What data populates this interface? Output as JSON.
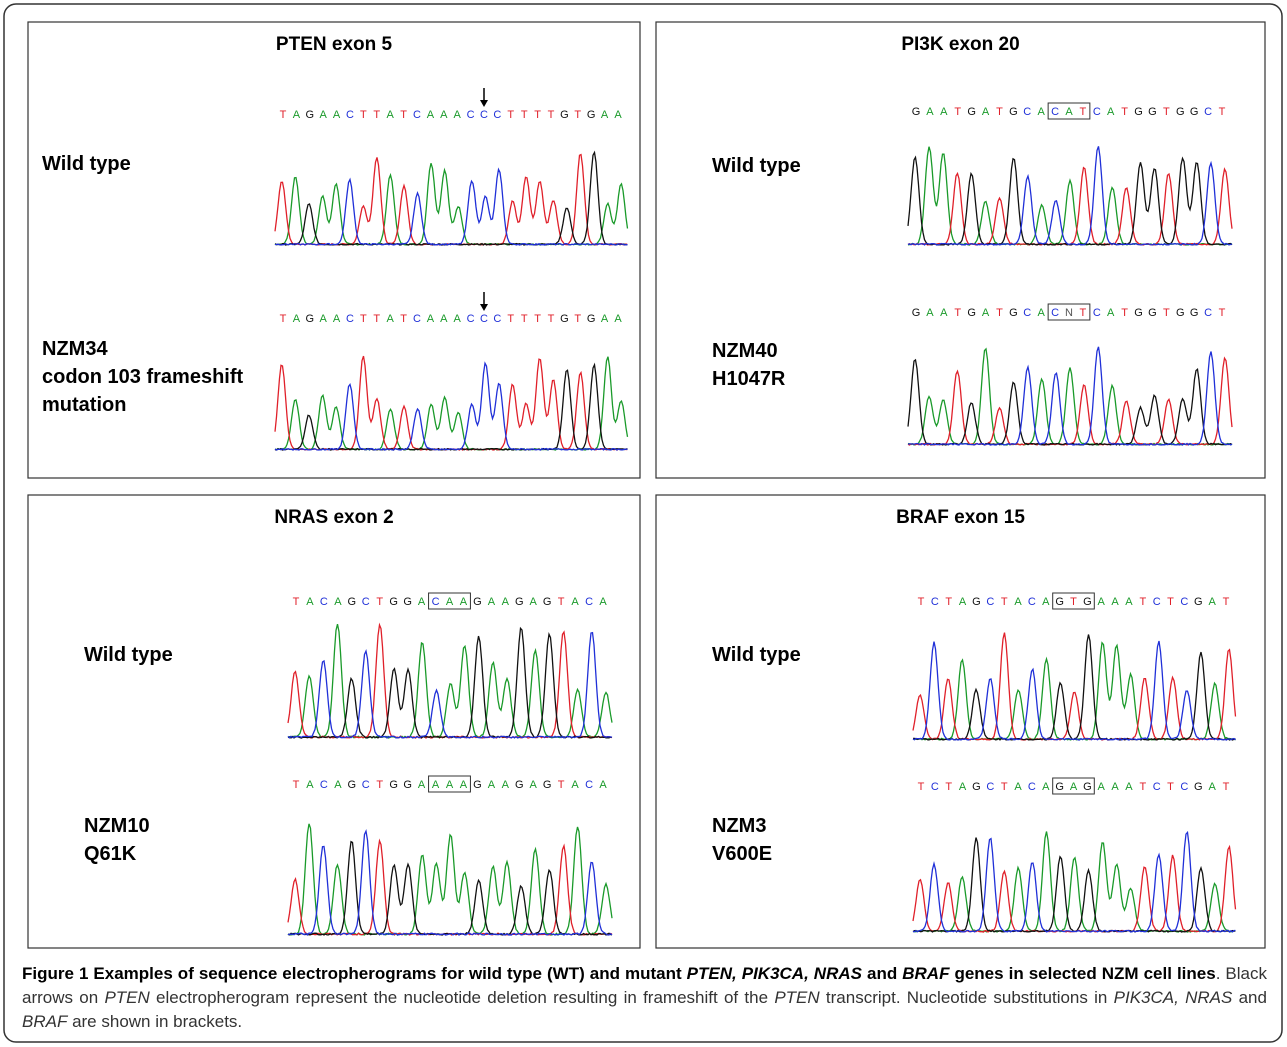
{
  "panels": [
    {
      "title": "PTEN exon 5",
      "rows": [
        {
          "label": [
            "Wild type"
          ],
          "sequence": "TAGAACTTATCAAACCCTTTTGTGAA"
        },
        {
          "label": [
            "NZM34",
            "codon 103 frameshift",
            "mutation"
          ],
          "sequence": "TAGAACTTATCAAACCCTTTTGTGAA"
        }
      ]
    },
    {
      "title": "PI3K exon 20",
      "rows": [
        {
          "label": [
            "Wild type"
          ],
          "sequence": "GAATGATGCACATCATGGTGGCT"
        },
        {
          "label": [
            "NZM40",
            "H1047R"
          ],
          "sequence": "GAATGATGCACNTCATGGTGGCT"
        }
      ]
    },
    {
      "title": "NRAS exon 2",
      "rows": [
        {
          "label": [
            "Wild type"
          ],
          "sequence": "TACAGCTGGACAAGAAGAGTACA"
        },
        {
          "label": [
            "NZM10",
            "Q61K"
          ],
          "sequence": "TACAGCTGGAAAAGAAGAGTACA"
        }
      ]
    },
    {
      "title": "BRAF exon 15",
      "rows": [
        {
          "label": [
            "Wild type"
          ],
          "sequence": "TCTAGCTACAGTGAAATCTCGAT"
        },
        {
          "label": [
            "NZM3",
            "V600E"
          ],
          "sequence": "TCTAGCTACAGAGAAATCTCGAT"
        }
      ]
    }
  ],
  "caption": {
    "parts": [
      "Figure 1 Examples of sequence electropherograms for wild type (WT) and mutant ",
      "PTEN, PIK3CA, NRAS",
      " and ",
      "BRAF",
      " genes in selected NZM cell lines",
      ". Black arrows on ",
      "PTEN",
      " electropherogram represent the nucleotide deletion resulting in frameshift of the ",
      "PTEN",
      " transcript. Nucleotide substitutions in ",
      "PIK3CA, NRAS",
      " and ",
      "BRAF",
      " are shown in brackets."
    ]
  }
}
